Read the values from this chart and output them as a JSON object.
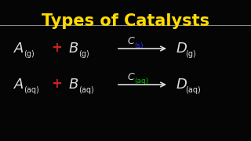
{
  "title": "Types of Catalysts",
  "title_color": "#FFDD00",
  "title_fontsize": 15,
  "bg_color": "#050505",
  "line_color": "#888888",
  "eq1": {
    "A": "A",
    "A_sub": "(g)",
    "plus_color": "#CC2222",
    "B": "B",
    "B_sub": "(g)",
    "catalyst": "C",
    "cat_sub": "(s)",
    "cat_sub_color": "#3333FF",
    "D": "D",
    "D_sub": "(g)"
  },
  "eq2": {
    "A": "A",
    "A_sub": "(aq)",
    "plus_color": "#CC2222",
    "B": "B",
    "B_sub": "(aq)",
    "catalyst": "C",
    "cat_sub": "(aq)",
    "cat_sub_color": "#00BB00",
    "D": "D",
    "D_sub": "(aq)"
  },
  "text_color": "#DDDDDD",
  "main_fontsize": 13,
  "sub_fontsize": 7,
  "cat_fontsize": 9,
  "cat_sub_fontsize": 6.5,
  "plus_fontsize": 12
}
